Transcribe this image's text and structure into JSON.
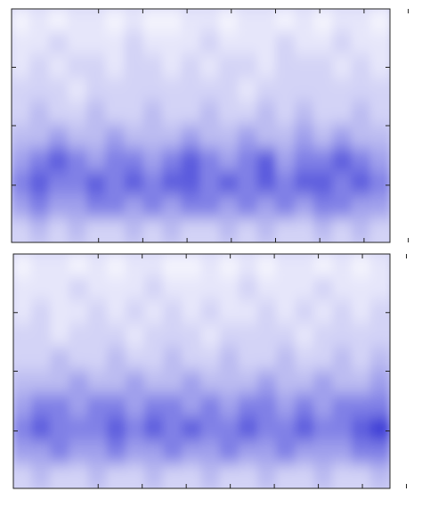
{
  "chart_data": [
    {
      "type": "contour",
      "colors": [
        "#f4f4fd",
        "#e6e6fa",
        "#d3d3f6",
        "#bcbcf1",
        "#a0a0ec",
        "#8080e6",
        "#5c5cde",
        "#3838d6"
      ],
      "z": [
        [
          0,
          1,
          0,
          1,
          1,
          0,
          1,
          0,
          0,
          1,
          1,
          0,
          1,
          1,
          0,
          1,
          0,
          1,
          1,
          0
        ],
        [
          1,
          1,
          2,
          1,
          1,
          1,
          2,
          1,
          1,
          1,
          2,
          1,
          1,
          1,
          2,
          1,
          1,
          2,
          1,
          1
        ],
        [
          1,
          2,
          1,
          2,
          2,
          1,
          2,
          2,
          1,
          2,
          1,
          2,
          2,
          1,
          2,
          2,
          2,
          1,
          2,
          1
        ],
        [
          2,
          2,
          2,
          1,
          2,
          2,
          2,
          2,
          2,
          2,
          2,
          2,
          1,
          2,
          2,
          2,
          2,
          2,
          2,
          2
        ],
        [
          2,
          3,
          2,
          2,
          3,
          2,
          2,
          3,
          2,
          2,
          3,
          2,
          2,
          3,
          2,
          3,
          2,
          2,
          3,
          2
        ],
        [
          3,
          3,
          4,
          3,
          3,
          4,
          3,
          3,
          3,
          4,
          3,
          3,
          4,
          3,
          3,
          4,
          3,
          4,
          3,
          3
        ],
        [
          4,
          5,
          6,
          5,
          4,
          5,
          5,
          4,
          5,
          6,
          5,
          4,
          5,
          6,
          4,
          5,
          5,
          6,
          5,
          4
        ],
        [
          5,
          6,
          5,
          5,
          6,
          5,
          6,
          5,
          6,
          6,
          5,
          6,
          5,
          6,
          5,
          6,
          6,
          5,
          6,
          5
        ],
        [
          4,
          5,
          4,
          4,
          5,
          5,
          4,
          5,
          4,
          5,
          5,
          4,
          5,
          4,
          5,
          4,
          5,
          5,
          4,
          4
        ],
        [
          2,
          3,
          2,
          3,
          2,
          2,
          3,
          2,
          3,
          2,
          2,
          3,
          2,
          3,
          2,
          2,
          3,
          2,
          3,
          2
        ]
      ]
    },
    {
      "type": "contour",
      "colors": [
        "#f4f4fd",
        "#e6e6fa",
        "#d3d3f6",
        "#bcbcf1",
        "#a0a0ec",
        "#8080e6",
        "#5c5cde",
        "#3838d6"
      ],
      "z": [
        [
          0,
          1,
          1,
          0,
          1,
          0,
          1,
          1,
          0,
          0,
          1,
          0,
          1,
          0,
          1,
          1,
          0,
          1,
          0,
          1
        ],
        [
          1,
          1,
          1,
          2,
          1,
          1,
          1,
          2,
          1,
          1,
          1,
          1,
          2,
          1,
          1,
          1,
          2,
          1,
          1,
          1
        ],
        [
          1,
          2,
          1,
          1,
          2,
          1,
          2,
          1,
          2,
          1,
          2,
          1,
          1,
          2,
          1,
          2,
          1,
          2,
          1,
          2
        ],
        [
          2,
          2,
          1,
          2,
          2,
          2,
          1,
          2,
          2,
          2,
          1,
          2,
          2,
          2,
          2,
          1,
          2,
          2,
          2,
          2
        ],
        [
          2,
          2,
          3,
          2,
          2,
          3,
          2,
          2,
          3,
          2,
          2,
          3,
          2,
          2,
          3,
          2,
          2,
          3,
          2,
          3
        ],
        [
          3,
          3,
          3,
          4,
          3,
          3,
          4,
          3,
          3,
          4,
          3,
          3,
          3,
          4,
          3,
          3,
          4,
          3,
          3,
          4
        ],
        [
          4,
          5,
          5,
          4,
          5,
          5,
          4,
          5,
          5,
          4,
          5,
          4,
          5,
          5,
          4,
          5,
          4,
          5,
          5,
          5
        ],
        [
          5,
          6,
          5,
          5,
          5,
          6,
          5,
          6,
          5,
          6,
          5,
          5,
          6,
          5,
          5,
          6,
          5,
          5,
          6,
          7
        ],
        [
          4,
          4,
          5,
          4,
          4,
          5,
          4,
          4,
          5,
          4,
          4,
          5,
          4,
          4,
          5,
          4,
          4,
          4,
          5,
          5
        ],
        [
          2,
          3,
          2,
          2,
          3,
          2,
          2,
          3,
          2,
          2,
          3,
          2,
          2,
          3,
          2,
          2,
          3,
          2,
          2,
          3
        ]
      ]
    }
  ]
}
